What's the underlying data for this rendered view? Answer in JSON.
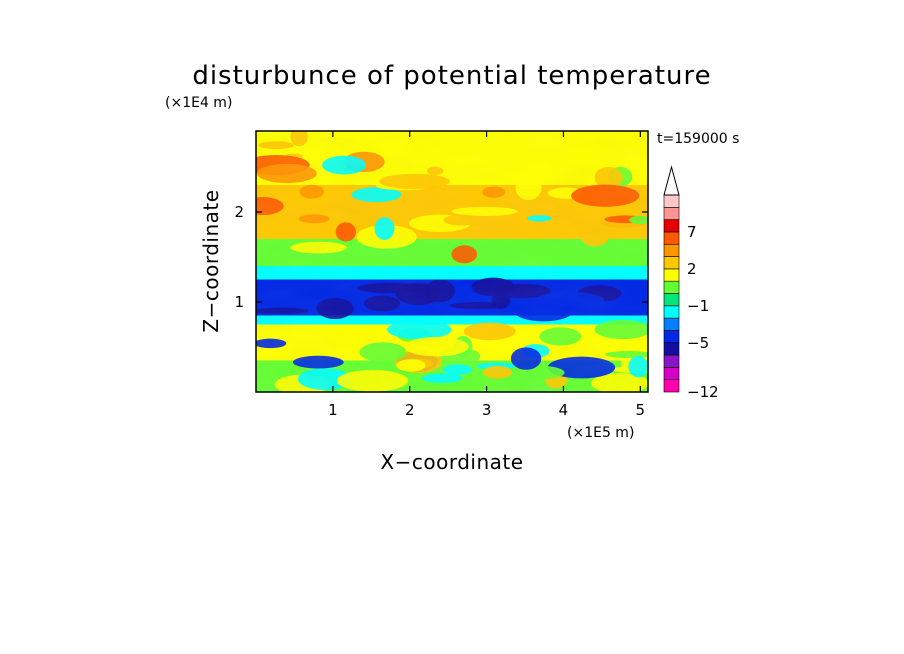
{
  "chart_data": {
    "type": "heatmap",
    "title": "disturbunce of potential temperature",
    "xlabel": "X−coordinate",
    "ylabel": "Z−coordinate",
    "x_unit": "(×1E5 m)",
    "y_unit": "(×1E4 m)",
    "time_label": "t=159000 s",
    "xlim": [
      0,
      5.1
    ],
    "ylim": [
      0,
      2.9
    ],
    "x_ticks": [
      "1",
      "2",
      "3",
      "4",
      "5"
    ],
    "y_ticks": [
      "1",
      "2"
    ],
    "x_tick_values": [
      1,
      2,
      3,
      4,
      5
    ],
    "y_tick_values": [
      1,
      2
    ],
    "colorbar": {
      "extend": "max",
      "labels": [
        "−12",
        "−5",
        "−1",
        "2",
        "7"
      ],
      "levels": [
        -12,
        -10,
        -8,
        -6,
        -5,
        -4,
        -2,
        -1,
        0,
        1,
        2,
        4,
        6,
        7,
        8,
        10
      ],
      "colors": [
        "#ff00aa",
        "#d400c8",
        "#8b14c8",
        "#140fa0",
        "#0028e6",
        "#0080ff",
        "#00ffff",
        "#00e678",
        "#64ff32",
        "#ffff00",
        "#ffc800",
        "#ff9600",
        "#ff5a00",
        "#e60000",
        "#ff9696",
        "#ffc8c8"
      ]
    },
    "field_description_bands": [
      {
        "z": [
          0.0,
          0.35
        ],
        "value": 0.5
      },
      {
        "z": [
          0.35,
          0.75
        ],
        "value": 1.0
      },
      {
        "z": [
          0.75,
          0.85
        ],
        "value": -1.5
      },
      {
        "z": [
          0.85,
          1.25
        ],
        "value": -4.5
      },
      {
        "z": [
          1.25,
          1.4
        ],
        "value": -1.5
      },
      {
        "z": [
          1.4,
          1.7
        ],
        "value": 0.5
      },
      {
        "z": [
          1.7,
          2.3
        ],
        "value": 2.5
      },
      {
        "z": [
          2.3,
          2.9
        ],
        "value": 1.5
      }
    ]
  }
}
